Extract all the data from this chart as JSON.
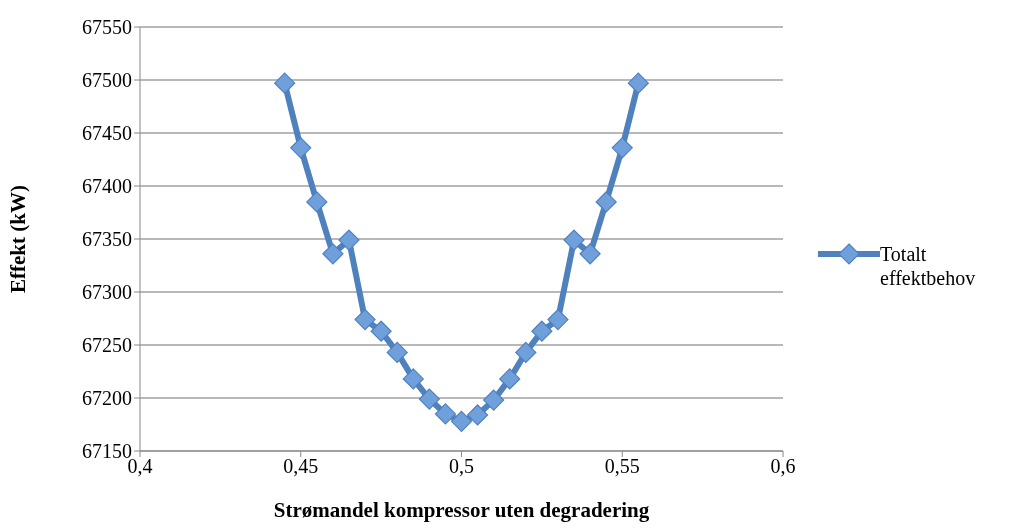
{
  "chart_data": {
    "type": "line",
    "xlabel": "Strømandel kompressor uten degradering",
    "ylabel": "Effekt (kW)",
    "x": [
      0.445,
      0.45,
      0.455,
      0.46,
      0.465,
      0.47,
      0.475,
      0.48,
      0.485,
      0.49,
      0.495,
      0.5,
      0.505,
      0.51,
      0.515,
      0.52,
      0.525,
      0.53,
      0.535,
      0.54,
      0.545,
      0.55,
      0.555
    ],
    "series": [
      {
        "name": "Totalt effektbehov",
        "color": "#4f81bd",
        "values": [
          67497,
          67436,
          67385,
          67336,
          67349,
          67274,
          67263,
          67243,
          67218,
          67199,
          67185,
          67178,
          67184,
          67198,
          67218,
          67243,
          67263,
          67274,
          67349,
          67336,
          67385,
          67436,
          67497
        ]
      }
    ],
    "xlim": [
      0.4,
      0.6
    ],
    "xticks": [
      {
        "value": 0.4,
        "label": "0,4"
      },
      {
        "value": 0.45,
        "label": "0,45"
      },
      {
        "value": 0.5,
        "label": "0,5"
      },
      {
        "value": 0.55,
        "label": "0,55"
      },
      {
        "value": 0.6,
        "label": "0,6"
      }
    ],
    "ylim": [
      67150,
      67550
    ],
    "yticks": [
      67150,
      67200,
      67250,
      67300,
      67350,
      67400,
      67450,
      67500,
      67550
    ],
    "grid": "y",
    "legend": "right",
    "marker": "diamond",
    "line_style": "solid"
  }
}
